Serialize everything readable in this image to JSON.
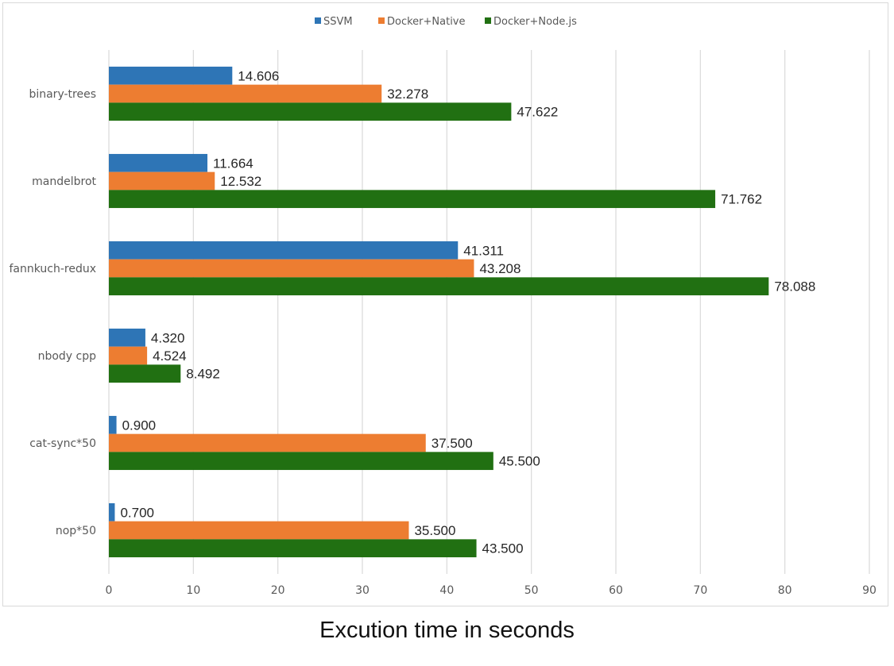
{
  "chart_data": {
    "type": "bar",
    "orientation": "horizontal",
    "title": "",
    "xlabel": "Excution time in seconds",
    "ylabel": "",
    "xlim": [
      0,
      90
    ],
    "xticks": [
      0,
      10,
      20,
      30,
      40,
      50,
      60,
      70,
      80,
      90
    ],
    "grid": true,
    "legend_position": "top",
    "categories": [
      "binary-trees",
      "mandelbrot",
      "fannkuch-redux",
      "nbody cpp",
      "cat-sync*50",
      "nop*50"
    ],
    "series": [
      {
        "name": "SSVM",
        "color": "#2e75b6",
        "values": [
          14.606,
          11.664,
          41.311,
          4.32,
          0.9,
          0.7
        ],
        "labels": [
          "14.606",
          "11.664",
          "41.311",
          "4.320",
          "0.900",
          "0.700"
        ]
      },
      {
        "name": "Docker+Native",
        "color": "#ed7d31",
        "values": [
          32.278,
          12.532,
          43.208,
          4.524,
          37.5,
          35.5
        ],
        "labels": [
          "32.278",
          "12.532",
          "43.208",
          "4.524",
          "37.500",
          "35.500"
        ]
      },
      {
        "name": "Docker+Node.js",
        "color": "#217012",
        "values": [
          47.622,
          71.762,
          78.088,
          8.492,
          45.5,
          43.5
        ],
        "labels": [
          "47.622",
          "71.762",
          "78.088",
          "8.492",
          "45.500",
          "43.500"
        ]
      }
    ]
  }
}
